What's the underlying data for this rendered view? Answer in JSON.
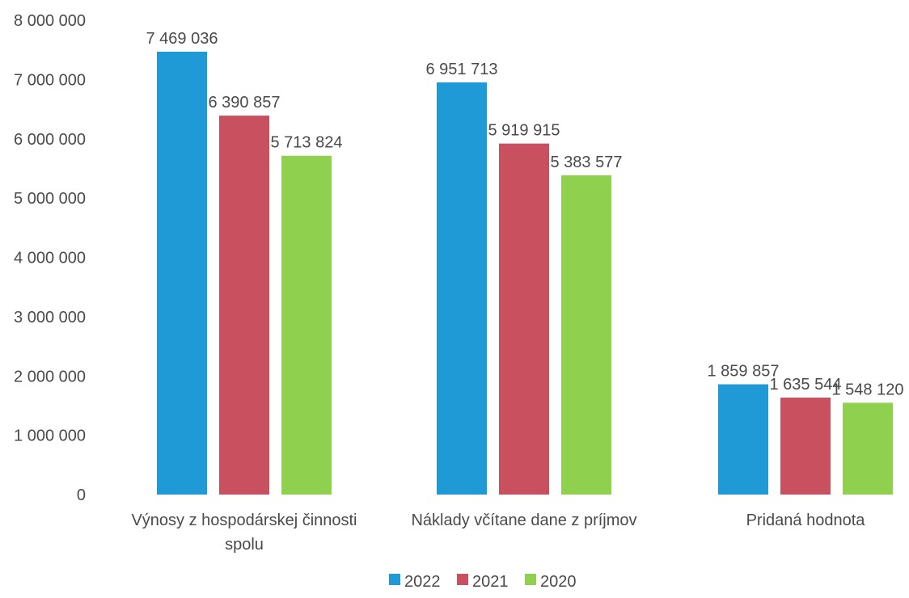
{
  "chart_data": {
    "type": "bar",
    "title": "",
    "xlabel": "",
    "ylabel": "",
    "ylim": [
      0,
      8000000
    ],
    "y_ticks": [
      0,
      1000000,
      2000000,
      3000000,
      4000000,
      5000000,
      6000000,
      7000000,
      8000000
    ],
    "y_tick_labels": [
      "0",
      "1 000 000",
      "2 000 000",
      "3 000 000",
      "4 000 000",
      "5 000 000",
      "6 000 000",
      "7 000 000",
      "8 000 000"
    ],
    "grid": false,
    "legend_position": "bottom",
    "categories": [
      [
        "Výnosy z hospodárskej činnosti",
        "spolu"
      ],
      [
        "Náklady včítane dane z príjmov"
      ],
      [
        "Pridaná hodnota"
      ]
    ],
    "series": [
      {
        "name": "2022",
        "color": "#1f9ad6",
        "values": [
          7469036,
          6951713,
          1859857
        ],
        "labels": [
          "7 469 036",
          "6 951 713",
          "1 859 857"
        ]
      },
      {
        "name": "2021",
        "color": "#c9515f",
        "values": [
          6390857,
          5919915,
          1635544
        ],
        "labels": [
          "6 390 857",
          "5 919 915",
          "1 635 544"
        ]
      },
      {
        "name": "2020",
        "color": "#8fd14f",
        "values": [
          5713824,
          5383577,
          1548120
        ],
        "labels": [
          "5 713 824",
          "5 383 577",
          "1 548 120"
        ]
      }
    ]
  }
}
